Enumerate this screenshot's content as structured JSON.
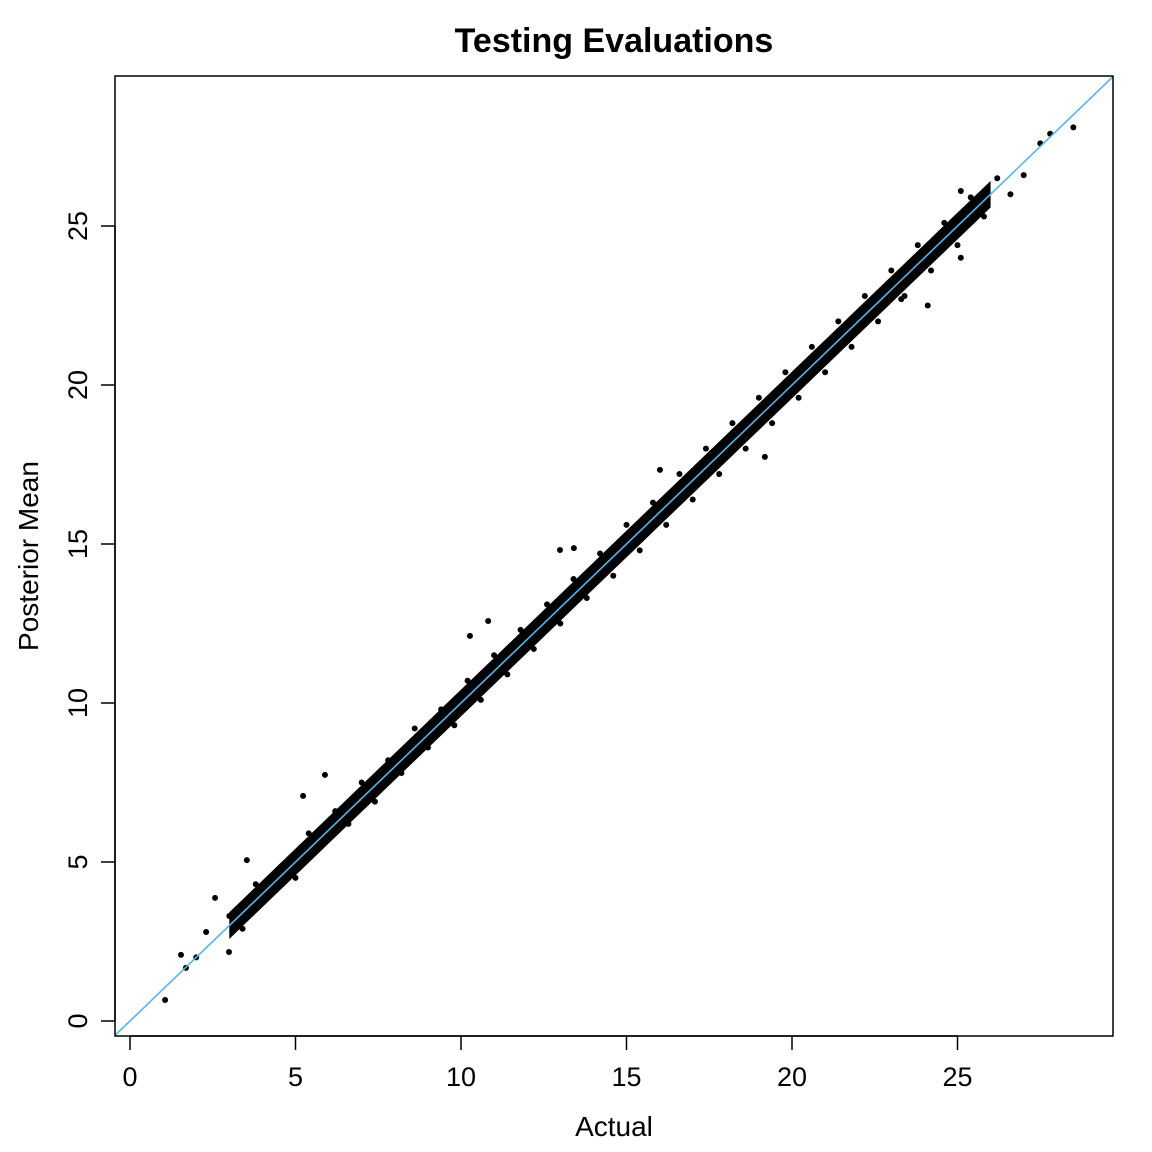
{
  "chart_data": {
    "type": "scatter",
    "title": "Testing Evaluations",
    "xlabel": "Actual",
    "ylabel": "Posterior Mean",
    "xlim": [
      -0.45,
      29.7
    ],
    "ylim": [
      -0.47,
      29.7
    ],
    "xticks": [
      0,
      5,
      10,
      15,
      20,
      25
    ],
    "yticks": [
      0,
      5,
      10,
      15,
      20,
      25
    ],
    "grid": false,
    "point_color": "#000000",
    "reference_line": {
      "type": "y = x",
      "color": "#56B4E9"
    },
    "points": [
      [
        1.06,
        0.66
      ],
      [
        1.54,
        2.08
      ],
      [
        1.69,
        1.67
      ],
      [
        2.0,
        2.0
      ],
      [
        2.3,
        2.8
      ],
      [
        2.57,
        3.87
      ],
      [
        2.99,
        2.17
      ],
      [
        3.53,
        5.06
      ],
      [
        3.0,
        3.3
      ],
      [
        3.4,
        2.9
      ],
      [
        3.8,
        4.3
      ],
      [
        4.2,
        4.0
      ],
      [
        4.6,
        4.8
      ],
      [
        5.0,
        4.5
      ],
      [
        5.23,
        7.08
      ],
      [
        5.4,
        5.9
      ],
      [
        5.8,
        5.6
      ],
      [
        5.89,
        7.74
      ],
      [
        6.2,
        6.6
      ],
      [
        6.6,
        6.2
      ],
      [
        7.0,
        7.5
      ],
      [
        7.4,
        6.9
      ],
      [
        7.8,
        8.2
      ],
      [
        8.2,
        7.8
      ],
      [
        8.6,
        9.2
      ],
      [
        9.0,
        8.6
      ],
      [
        9.4,
        9.8
      ],
      [
        9.8,
        9.3
      ],
      [
        10.2,
        10.7
      ],
      [
        10.27,
        12.11
      ],
      [
        10.6,
        10.1
      ],
      [
        10.82,
        12.58
      ],
      [
        11.0,
        11.5
      ],
      [
        11.4,
        10.9
      ],
      [
        11.8,
        12.3
      ],
      [
        12.2,
        11.7
      ],
      [
        12.6,
        13.1
      ],
      [
        12.99,
        14.81
      ],
      [
        13.0,
        12.5
      ],
      [
        13.41,
        14.87
      ],
      [
        13.4,
        13.9
      ],
      [
        13.8,
        13.3
      ],
      [
        14.2,
        14.7
      ],
      [
        14.6,
        14.0
      ],
      [
        15.0,
        15.6
      ],
      [
        15.4,
        14.8
      ],
      [
        15.8,
        16.3
      ],
      [
        16.01,
        17.33
      ],
      [
        16.2,
        15.6
      ],
      [
        16.6,
        17.2
      ],
      [
        17.0,
        16.4
      ],
      [
        17.4,
        18.0
      ],
      [
        17.8,
        17.2
      ],
      [
        18.2,
        18.8
      ],
      [
        18.6,
        18.0
      ],
      [
        19.0,
        19.6
      ],
      [
        19.18,
        17.74
      ],
      [
        19.4,
        18.8
      ],
      [
        19.8,
        20.4
      ],
      [
        20.2,
        19.6
      ],
      [
        20.6,
        21.2
      ],
      [
        21.0,
        20.4
      ],
      [
        21.4,
        22.0
      ],
      [
        21.8,
        21.2
      ],
      [
        22.2,
        22.8
      ],
      [
        22.6,
        22.0
      ],
      [
        23.0,
        23.6
      ],
      [
        23.3,
        22.7
      ],
      [
        23.4,
        22.8
      ],
      [
        23.8,
        24.4
      ],
      [
        24.1,
        22.5
      ],
      [
        24.2,
        23.6
      ],
      [
        24.6,
        25.1
      ],
      [
        25.0,
        24.4
      ],
      [
        25.1,
        26.1
      ],
      [
        25.1,
        24.0
      ],
      [
        25.4,
        25.9
      ],
      [
        25.8,
        25.3
      ],
      [
        26.2,
        26.5
      ],
      [
        26.6,
        26.0
      ],
      [
        27.0,
        26.6
      ],
      [
        27.5,
        27.6
      ],
      [
        27.8,
        27.9
      ],
      [
        28.5,
        28.1
      ]
    ]
  }
}
